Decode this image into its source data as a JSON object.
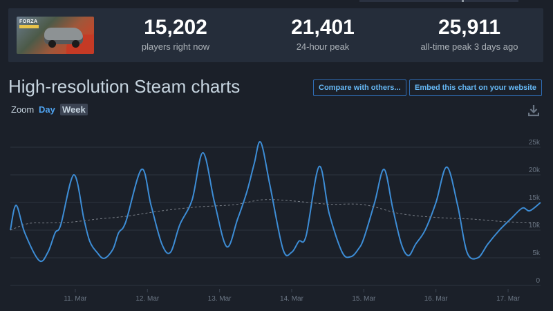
{
  "stats": [
    {
      "value": "15,202",
      "label": "players right now"
    },
    {
      "value": "21,401",
      "label": "24-hour peak"
    },
    {
      "value": "25,911",
      "label": "all-time peak 3 days ago"
    }
  ],
  "game": {
    "logo_text": "FORZA",
    "thumbnail_icon": "game-thumbnail"
  },
  "header": {
    "title": "High-resolution Steam charts",
    "compare_label": "Compare with others...",
    "embed_label": "Embed this chart on your website"
  },
  "zoom": {
    "label": "Zoom",
    "day": "Day",
    "week": "Week",
    "selected": "Week"
  },
  "colors": {
    "players": "#3d8dd6",
    "average": "#7b8089",
    "accent": "#66b8f5"
  },
  "chart_data": {
    "type": "line",
    "ytick_labels": [
      "0",
      "5k",
      "10k",
      "15k",
      "20k",
      "25k"
    ],
    "ylim": [
      0,
      25000
    ],
    "xtick_labels": [
      "11. Mar",
      "12. Mar",
      "13. Mar",
      "14. Mar",
      "15. Mar",
      "16. Mar",
      "17. Mar"
    ],
    "x_range_days": [
      10.1,
      17.45
    ],
    "grid": true,
    "series": [
      {
        "style": "solid",
        "points": [
          [
            10.1,
            10000
          ],
          [
            10.18,
            14500
          ],
          [
            10.3,
            9500
          ],
          [
            10.5,
            4500
          ],
          [
            10.62,
            6000
          ],
          [
            10.72,
            9500
          ],
          [
            10.8,
            11000
          ],
          [
            10.98,
            20000
          ],
          [
            11.12,
            12000
          ],
          [
            11.2,
            8000
          ],
          [
            11.3,
            6000
          ],
          [
            11.4,
            4900
          ],
          [
            11.52,
            6500
          ],
          [
            11.6,
            9500
          ],
          [
            11.7,
            11500
          ],
          [
            11.92,
            21000
          ],
          [
            12.05,
            14500
          ],
          [
            12.2,
            7500
          ],
          [
            12.32,
            6000
          ],
          [
            12.45,
            11000
          ],
          [
            12.62,
            15500
          ],
          [
            12.77,
            24000
          ],
          [
            12.93,
            15000
          ],
          [
            13.1,
            7000
          ],
          [
            13.25,
            12000
          ],
          [
            13.38,
            17000
          ],
          [
            13.48,
            22000
          ],
          [
            13.57,
            25900
          ],
          [
            13.7,
            18000
          ],
          [
            13.88,
            6500
          ],
          [
            14.0,
            6000
          ],
          [
            14.1,
            8000
          ],
          [
            14.2,
            9000
          ],
          [
            14.38,
            21500
          ],
          [
            14.52,
            13000
          ],
          [
            14.7,
            6000
          ],
          [
            14.82,
            5200
          ],
          [
            14.92,
            6500
          ],
          [
            15.0,
            8500
          ],
          [
            15.15,
            15000
          ],
          [
            15.28,
            21000
          ],
          [
            15.4,
            14000
          ],
          [
            15.52,
            7500
          ],
          [
            15.62,
            5400
          ],
          [
            15.72,
            7500
          ],
          [
            15.85,
            10000
          ],
          [
            16.0,
            15000
          ],
          [
            16.15,
            21400
          ],
          [
            16.3,
            14500
          ],
          [
            16.43,
            6000
          ],
          [
            16.58,
            5000
          ],
          [
            16.72,
            7500
          ],
          [
            16.88,
            10000
          ],
          [
            17.05,
            12200
          ],
          [
            17.2,
            14000
          ],
          [
            17.3,
            13500
          ],
          [
            17.45,
            15000
          ]
        ]
      },
      {
        "style": "dashed",
        "points": [
          [
            10.1,
            10000
          ],
          [
            10.35,
            11200
          ],
          [
            10.6,
            11300
          ],
          [
            10.9,
            11400
          ],
          [
            11.3,
            12000
          ],
          [
            11.7,
            12500
          ],
          [
            12.2,
            13500
          ],
          [
            12.7,
            14200
          ],
          [
            13.2,
            14600
          ],
          [
            13.6,
            15500
          ],
          [
            14.0,
            15300
          ],
          [
            14.5,
            14700
          ],
          [
            15.0,
            14600
          ],
          [
            15.5,
            13000
          ],
          [
            16.0,
            12300
          ],
          [
            16.5,
            12000
          ],
          [
            17.0,
            11500
          ],
          [
            17.45,
            11400
          ]
        ]
      }
    ]
  }
}
